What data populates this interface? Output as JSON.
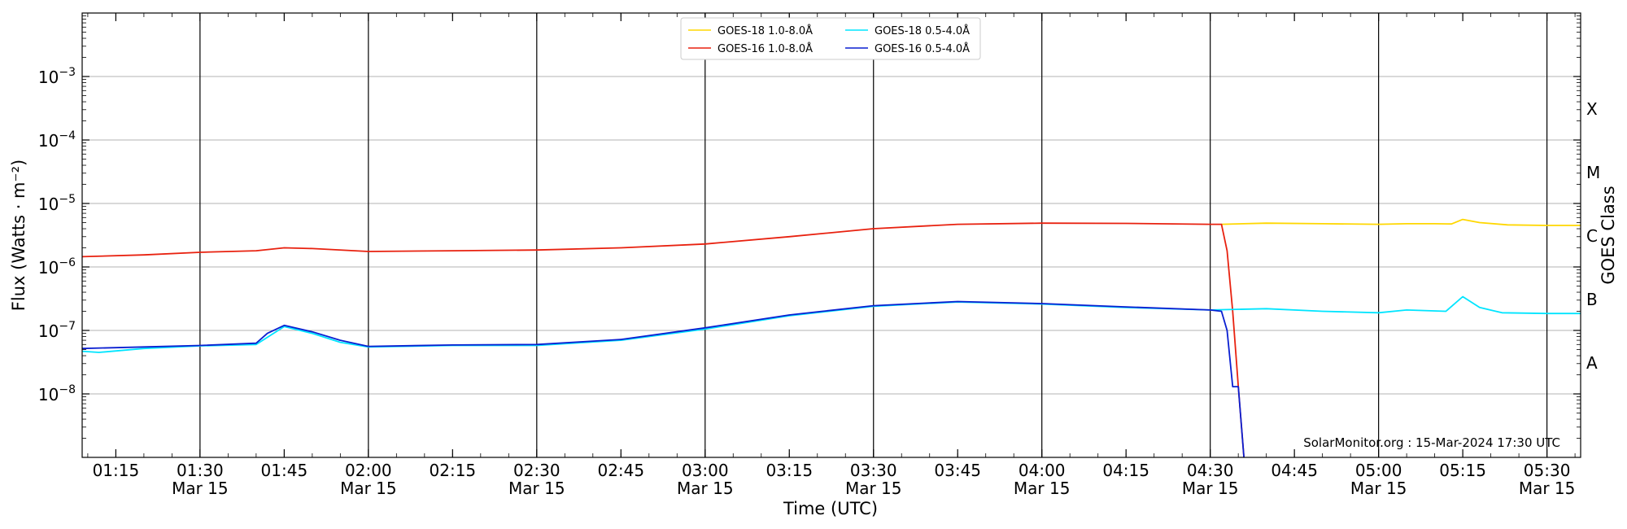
{
  "chart_data": {
    "type": "line",
    "xlabel": "Time (UTC)",
    "ylabel": "Flux (Watts · m⁻²)",
    "ylabel_right": "GOES Class",
    "y_scale": "log",
    "ylim": [
      1e-09,
      0.01
    ],
    "xlim": [
      "2024-03-15T01:09",
      "2024-03-15T05:36"
    ],
    "grid": true,
    "legend_position": "top-center",
    "watermark": "SolarMonitor.org : 15-Mar-2024 17:30 UTC",
    "y_ticks": [
      {
        "value": 1e-08,
        "base": "10",
        "exp": "−8"
      },
      {
        "value": 1e-07,
        "base": "10",
        "exp": "−7"
      },
      {
        "value": 1e-06,
        "base": "10",
        "exp": "−6"
      },
      {
        "value": 1e-05,
        "base": "10",
        "exp": "−5"
      },
      {
        "value": 0.0001,
        "base": "10",
        "exp": "−4"
      },
      {
        "value": 0.001,
        "base": "10",
        "exp": "−3"
      }
    ],
    "x_ticks": [
      {
        "time": "2024-03-15T01:15",
        "label": "01:15",
        "sublabel": ""
      },
      {
        "time": "2024-03-15T01:30",
        "label": "01:30",
        "sublabel": "Mar 15"
      },
      {
        "time": "2024-03-15T01:45",
        "label": "01:45",
        "sublabel": ""
      },
      {
        "time": "2024-03-15T02:00",
        "label": "02:00",
        "sublabel": "Mar 15"
      },
      {
        "time": "2024-03-15T02:15",
        "label": "02:15",
        "sublabel": ""
      },
      {
        "time": "2024-03-15T02:30",
        "label": "02:30",
        "sublabel": "Mar 15"
      },
      {
        "time": "2024-03-15T02:45",
        "label": "02:45",
        "sublabel": ""
      },
      {
        "time": "2024-03-15T03:00",
        "label": "03:00",
        "sublabel": "Mar 15"
      },
      {
        "time": "2024-03-15T03:15",
        "label": "03:15",
        "sublabel": ""
      },
      {
        "time": "2024-03-15T03:30",
        "label": "03:30",
        "sublabel": "Mar 15"
      },
      {
        "time": "2024-03-15T03:45",
        "label": "03:45",
        "sublabel": ""
      },
      {
        "time": "2024-03-15T04:00",
        "label": "04:00",
        "sublabel": "Mar 15"
      },
      {
        "time": "2024-03-15T04:15",
        "label": "04:15",
        "sublabel": ""
      },
      {
        "time": "2024-03-15T04:30",
        "label": "04:30",
        "sublabel": "Mar 15"
      },
      {
        "time": "2024-03-15T04:45",
        "label": "04:45",
        "sublabel": ""
      },
      {
        "time": "2024-03-15T05:00",
        "label": "05:00",
        "sublabel": "Mar 15"
      },
      {
        "time": "2024-03-15T05:15",
        "label": "05:15",
        "sublabel": ""
      },
      {
        "time": "2024-03-15T05:30",
        "label": "05:30",
        "sublabel": "Mar 15"
      }
    ],
    "vertical_lines": [
      "2024-03-15T01:30",
      "2024-03-15T02:00",
      "2024-03-15T02:30",
      "2024-03-15T03:00",
      "2024-03-15T03:30",
      "2024-03-15T04:00",
      "2024-03-15T04:30",
      "2024-03-15T05:00",
      "2024-03-15T05:30"
    ],
    "goes_classes": [
      {
        "label": "A",
        "min": 1e-08,
        "max": 1e-07
      },
      {
        "label": "B",
        "min": 1e-07,
        "max": 1e-06
      },
      {
        "label": "C",
        "min": 1e-06,
        "max": 1e-05
      },
      {
        "label": "M",
        "min": 1e-05,
        "max": 0.0001
      },
      {
        "label": "X",
        "min": 0.0001,
        "max": 0.001
      }
    ],
    "series": [
      {
        "name": "GOES-18 1.0-8.0Å",
        "color": "#ffd700",
        "points": [
          [
            "2024-03-15T04:32",
            4.7e-06
          ],
          [
            "2024-03-15T04:40",
            4.9e-06
          ],
          [
            "2024-03-15T04:50",
            4.8e-06
          ],
          [
            "2024-03-15T05:00",
            4.7e-06
          ],
          [
            "2024-03-15T05:05",
            4.8e-06
          ],
          [
            "2024-03-15T05:10",
            4.8e-06
          ],
          [
            "2024-03-15T05:13",
            4.75e-06
          ],
          [
            "2024-03-15T05:15",
            5.6e-06
          ],
          [
            "2024-03-15T05:18",
            5e-06
          ],
          [
            "2024-03-15T05:23",
            4.6e-06
          ],
          [
            "2024-03-15T05:30",
            4.5e-06
          ],
          [
            "2024-03-15T05:36",
            4.5e-06
          ]
        ]
      },
      {
        "name": "GOES-16 1.0-8.0Å",
        "color": "#e8210f",
        "points": [
          [
            "2024-03-15T01:09",
            1.45e-06
          ],
          [
            "2024-03-15T01:20",
            1.55e-06
          ],
          [
            "2024-03-15T01:30",
            1.7e-06
          ],
          [
            "2024-03-15T01:40",
            1.8e-06
          ],
          [
            "2024-03-15T01:45",
            2e-06
          ],
          [
            "2024-03-15T01:50",
            1.95e-06
          ],
          [
            "2024-03-15T02:00",
            1.75e-06
          ],
          [
            "2024-03-15T02:15",
            1.8e-06
          ],
          [
            "2024-03-15T02:30",
            1.85e-06
          ],
          [
            "2024-03-15T02:45",
            2e-06
          ],
          [
            "2024-03-15T03:00",
            2.3e-06
          ],
          [
            "2024-03-15T03:15",
            3e-06
          ],
          [
            "2024-03-15T03:30",
            4e-06
          ],
          [
            "2024-03-15T03:45",
            4.7e-06
          ],
          [
            "2024-03-15T04:00",
            4.9e-06
          ],
          [
            "2024-03-15T04:15",
            4.85e-06
          ],
          [
            "2024-03-15T04:30",
            4.7e-06
          ],
          [
            "2024-03-15T04:32",
            4.7e-06
          ],
          [
            "2024-03-15T04:33",
            1.8e-06
          ],
          [
            "2024-03-15T04:34",
            2e-07
          ],
          [
            "2024-03-15T04:35",
            1.3e-08
          ],
          [
            "2024-03-15T04:36",
            1e-09
          ]
        ]
      },
      {
        "name": "GOES-18 0.5-4.0Å",
        "color": "#00e5ff",
        "points": [
          [
            "2024-03-15T01:09",
            4.7e-08
          ],
          [
            "2024-03-15T01:12",
            4.5e-08
          ],
          [
            "2024-03-15T01:20",
            5.2e-08
          ],
          [
            "2024-03-15T01:30",
            5.7e-08
          ],
          [
            "2024-03-15T01:40",
            6e-08
          ],
          [
            "2024-03-15T01:45",
            1.15e-07
          ],
          [
            "2024-03-15T01:50",
            9e-08
          ],
          [
            "2024-03-15T01:55",
            6.5e-08
          ],
          [
            "2024-03-15T02:00",
            5.5e-08
          ],
          [
            "2024-03-15T02:15",
            5.8e-08
          ],
          [
            "2024-03-15T02:30",
            5.8e-08
          ],
          [
            "2024-03-15T02:45",
            7e-08
          ],
          [
            "2024-03-15T03:00",
            1.05e-07
          ],
          [
            "2024-03-15T03:15",
            1.7e-07
          ],
          [
            "2024-03-15T03:30",
            2.4e-07
          ],
          [
            "2024-03-15T03:45",
            2.8e-07
          ],
          [
            "2024-03-15T04:00",
            2.6e-07
          ],
          [
            "2024-03-15T04:15",
            2.3e-07
          ],
          [
            "2024-03-15T04:30",
            2.1e-07
          ],
          [
            "2024-03-15T04:40",
            2.2e-07
          ],
          [
            "2024-03-15T04:50",
            2e-07
          ],
          [
            "2024-03-15T05:00",
            1.9e-07
          ],
          [
            "2024-03-15T05:05",
            2.1e-07
          ],
          [
            "2024-03-15T05:12",
            2e-07
          ],
          [
            "2024-03-15T05:15",
            3.4e-07
          ],
          [
            "2024-03-15T05:18",
            2.3e-07
          ],
          [
            "2024-03-15T05:22",
            1.9e-07
          ],
          [
            "2024-03-15T05:30",
            1.85e-07
          ],
          [
            "2024-03-15T05:36",
            1.85e-07
          ]
        ]
      },
      {
        "name": "GOES-16 0.5-4.0Å",
        "color": "#0a1fd1",
        "points": [
          [
            "2024-03-15T01:09",
            5.2e-08
          ],
          [
            "2024-03-15T01:20",
            5.5e-08
          ],
          [
            "2024-03-15T01:30",
            5.8e-08
          ],
          [
            "2024-03-15T01:40",
            6.3e-08
          ],
          [
            "2024-03-15T01:42",
            9e-08
          ],
          [
            "2024-03-15T01:45",
            1.2e-07
          ],
          [
            "2024-03-15T01:50",
            9.5e-08
          ],
          [
            "2024-03-15T01:55",
            7e-08
          ],
          [
            "2024-03-15T02:00",
            5.6e-08
          ],
          [
            "2024-03-15T02:15",
            5.9e-08
          ],
          [
            "2024-03-15T02:30",
            6e-08
          ],
          [
            "2024-03-15T02:45",
            7.2e-08
          ],
          [
            "2024-03-15T03:00",
            1.1e-07
          ],
          [
            "2024-03-15T03:15",
            1.75e-07
          ],
          [
            "2024-03-15T03:30",
            2.45e-07
          ],
          [
            "2024-03-15T03:45",
            2.85e-07
          ],
          [
            "2024-03-15T04:00",
            2.65e-07
          ],
          [
            "2024-03-15T04:15",
            2.35e-07
          ],
          [
            "2024-03-15T04:30",
            2.1e-07
          ],
          [
            "2024-03-15T04:32",
            2e-07
          ],
          [
            "2024-03-15T04:33",
            1e-07
          ],
          [
            "2024-03-15T04:34",
            1.3e-08
          ],
          [
            "2024-03-15T04:35",
            1.3e-08
          ],
          [
            "2024-03-15T04:36",
            1e-09
          ]
        ]
      }
    ]
  }
}
